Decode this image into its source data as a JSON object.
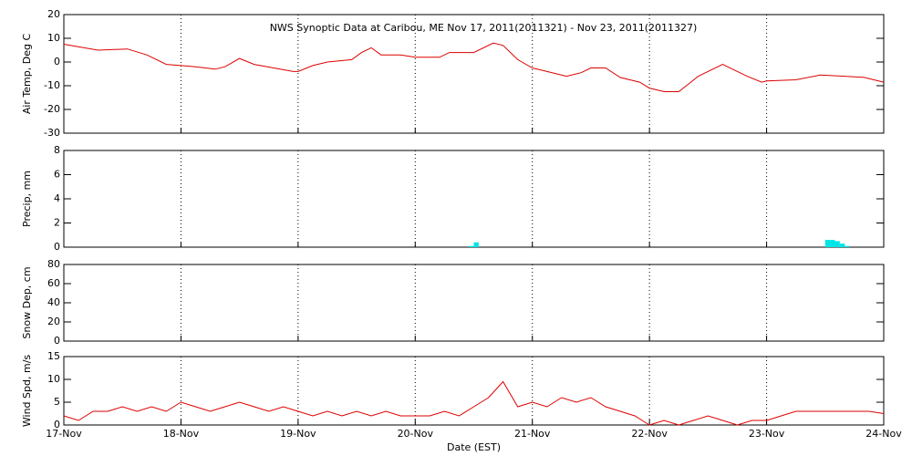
{
  "chart_data": [
    {
      "type": "line",
      "title": "NWS Synoptic Data at Caribou, ME   Nov 17, 2011(2011321) - Nov 23, 2011(2011327)",
      "ylabel": "Air Temp, Deg C",
      "x": [
        0,
        7,
        13,
        17,
        21,
        24,
        27,
        31,
        33,
        36,
        39,
        43,
        47,
        48,
        51,
        54,
        59,
        61,
        63,
        65,
        69,
        72,
        77,
        79,
        84,
        88,
        90,
        93,
        96,
        99,
        103,
        106,
        108,
        111,
        114,
        118,
        120,
        123,
        126,
        130,
        135,
        137,
        140,
        143,
        144,
        150,
        155,
        160,
        164,
        168
      ],
      "values": [
        7.5,
        5,
        5.5,
        3,
        -1,
        -1.5,
        -2,
        -3,
        -2,
        1.5,
        -1,
        -2.5,
        -4,
        -4,
        -1.5,
        0,
        1,
        4,
        6,
        3,
        3,
        2,
        2,
        4,
        4,
        8,
        7,
        1,
        -2.5,
        -4,
        -6,
        -4.5,
        -2.5,
        -2.5,
        -6.5,
        -8.5,
        -11,
        -12.5,
        -12.5,
        -6,
        -1,
        -3,
        -6,
        -8.5,
        -8,
        -7.5,
        -5.5,
        -6,
        -6.5,
        -8.5
      ],
      "color": "#dd0000",
      "xlim": [
        0,
        168
      ],
      "xticks": [
        0,
        24,
        48,
        72,
        96,
        120,
        144,
        168
      ],
      "ylim": [
        -30,
        20
      ],
      "yticks": [
        -30,
        -20,
        -10,
        0,
        10,
        20
      ],
      "grid": true
    },
    {
      "type": "bar",
      "ylabel": "Precip, mm",
      "x": [
        83,
        84,
        156,
        157,
        158,
        159,
        160
      ],
      "values": [
        0.1,
        0.4,
        0.6,
        0.6,
        0.5,
        0.3,
        0.1
      ],
      "color": "#00e5e5",
      "xlim": [
        0,
        168
      ],
      "xticks": [
        0,
        24,
        48,
        72,
        96,
        120,
        144,
        168
      ],
      "ylim": [
        0,
        8
      ],
      "yticks": [
        0,
        2,
        4,
        6,
        8
      ],
      "grid": true
    },
    {
      "type": "line",
      "ylabel": "Snow Dep, cm",
      "x": [],
      "values": [],
      "color": "#dd0000",
      "xlim": [
        0,
        168
      ],
      "xticks": [
        0,
        24,
        48,
        72,
        96,
        120,
        144,
        168
      ],
      "ylim": [
        0,
        80
      ],
      "yticks": [
        0,
        20,
        40,
        60,
        80
      ],
      "grid": true
    },
    {
      "type": "line",
      "ylabel": "Wind Spd, m/s",
      "xlabel": "Date (EST)",
      "x": [
        0,
        3,
        6,
        9,
        12,
        15,
        18,
        21,
        24,
        27,
        30,
        33,
        36,
        39,
        42,
        45,
        48,
        51,
        54,
        57,
        60,
        63,
        66,
        69,
        72,
        75,
        78,
        81,
        84,
        87,
        90,
        93,
        96,
        99,
        102,
        105,
        108,
        111,
        114,
        117,
        120,
        123,
        126,
        129,
        132,
        135,
        138,
        141,
        144,
        147,
        150,
        153,
        156,
        159,
        162,
        165,
        168
      ],
      "values": [
        2,
        1,
        3,
        3,
        4,
        3,
        4,
        3,
        5,
        4,
        3,
        4,
        5,
        4,
        3,
        4,
        3,
        2,
        3,
        2,
        3,
        2,
        3,
        2,
        2,
        2,
        3,
        2,
        4,
        6,
        9.5,
        4,
        5,
        4,
        6,
        5,
        6,
        4,
        3,
        2,
        0,
        1,
        0,
        1,
        2,
        1,
        0,
        1,
        1,
        2,
        3,
        3,
        3,
        3,
        3,
        3,
        2.5
      ],
      "color": "#dd0000",
      "xlim": [
        0,
        168
      ],
      "xticks": [
        {
          "value": 0,
          "label": "17-Nov"
        },
        {
          "value": 24,
          "label": "18-Nov"
        },
        {
          "value": 48,
          "label": "19-Nov"
        },
        {
          "value": 72,
          "label": "20-Nov"
        },
        {
          "value": 96,
          "label": "21-Nov"
        },
        {
          "value": 120,
          "label": "22-Nov"
        },
        {
          "value": 144,
          "label": "23-Nov"
        },
        {
          "value": 168,
          "label": "24-Nov"
        }
      ],
      "ylim": [
        0,
        15
      ],
      "yticks": [
        0,
        5,
        10,
        15
      ],
      "grid": true
    }
  ]
}
